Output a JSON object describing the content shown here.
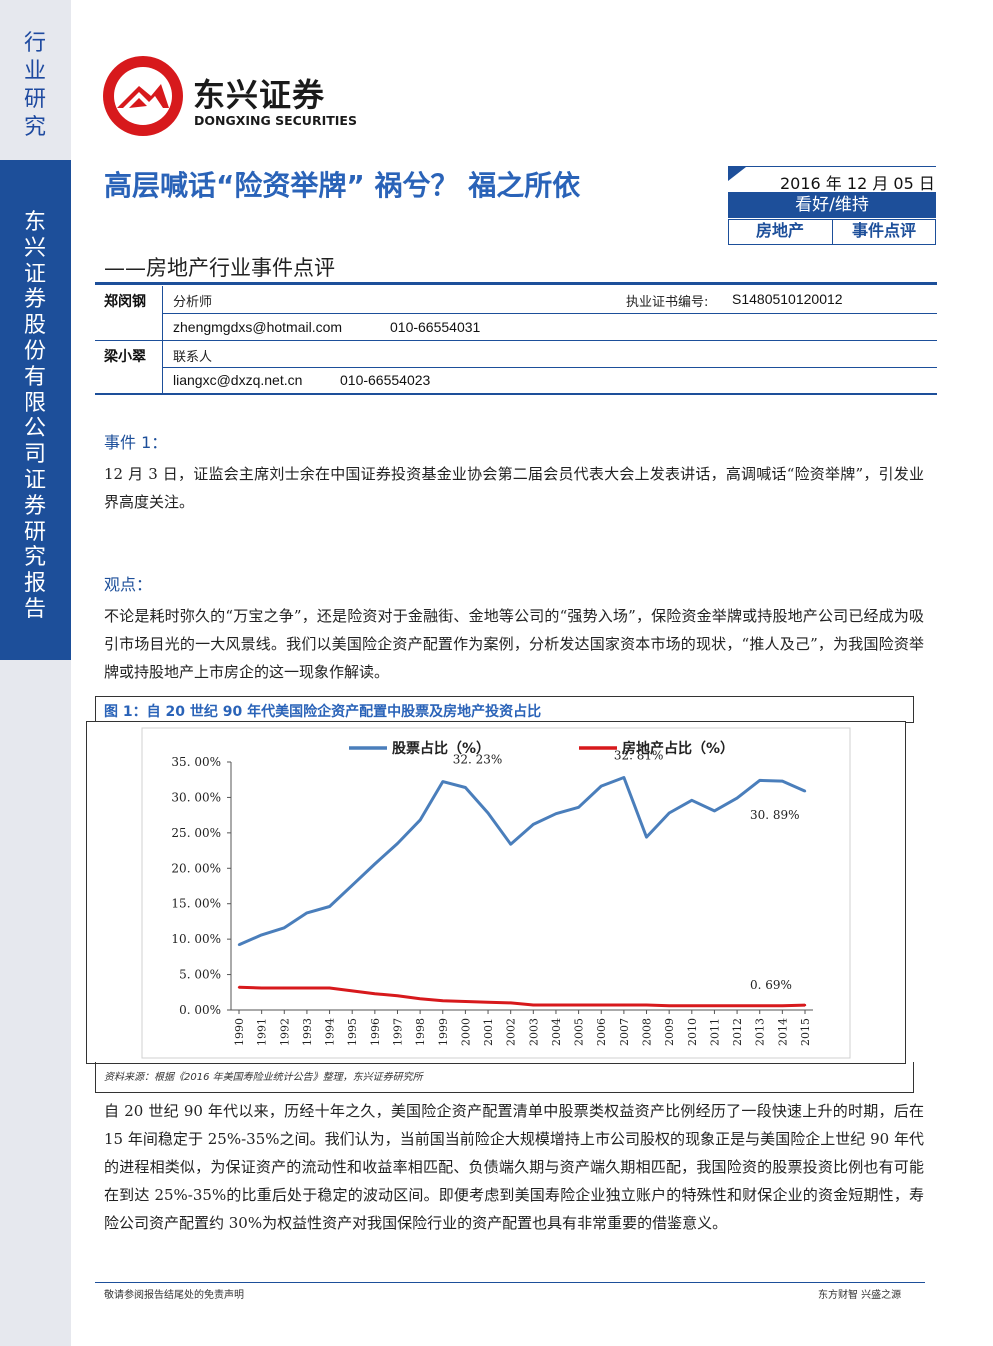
{
  "sidebar": {
    "top_label": "行业研究",
    "company_label": "东兴证券股份有限公司证券研究报告"
  },
  "logo": {
    "cn": "东兴证券",
    "en": "DONGXING SECURITIES",
    "color": "#d7191c"
  },
  "header": {
    "title": "高层喊话“险资举牌” 祸兮？ 福之所依",
    "subtitle": "——房地产行业事件点评",
    "date": "2016 年 12 月 05 日",
    "rating": "看好/维持",
    "tags": [
      "房地产",
      "事件点评"
    ]
  },
  "analysts": [
    {
      "name": "郑闵钢",
      "role": "分析师",
      "cert_label": "执业证书编号:",
      "cert_no": "S1480510120012",
      "email": "zhengmgdxs@hotmail.com",
      "phone": "010-66554031"
    },
    {
      "name": "梁小翠",
      "role": "联系人",
      "email": "liangxc@dxzq.net.cn",
      "phone": "010-66554023"
    }
  ],
  "event": {
    "heading": "事件 1：",
    "text": "12 月 3 日，证监会主席刘士余在中国证券投资基金业协会第二届会员代表大会上发表讲话，高调喊话“险资举牌”，引发业界高度关注。"
  },
  "view": {
    "heading": "观点：",
    "text": "不论是耗时弥久的“万宝之争”，还是险资对于金融街、金地等公司的“强势入场”，保险资金举牌或持股地产公司已经成为吸引市场目光的一大风景线。我们以美国险企资产配置作为案例，分析发达国家资本市场的现状，“推人及己”，为我国险资举牌或持股地产上市房企的这一现象作解读。"
  },
  "figure": {
    "heading": "图 1：自 20 世纪 90 年代美国险企资产配置中股票及房地产投资占比",
    "source": "资料来源：根据《2016 年美国寿险业统计公告》整理，东兴证券研究所"
  },
  "chart_data": {
    "type": "line",
    "x": [
      "1990",
      "1991",
      "1992",
      "1993",
      "1994",
      "1995",
      "1996",
      "1997",
      "1998",
      "1999",
      "2000",
      "2001",
      "2002",
      "2003",
      "2004",
      "2005",
      "2006",
      "2007",
      "2008",
      "2009",
      "2010",
      "2011",
      "2012",
      "2013",
      "2014",
      "2015"
    ],
    "series": [
      {
        "name": "股票占比（%）",
        "color": "#4a7ebb",
        "values": [
          9.2,
          10.6,
          11.6,
          13.7,
          14.6,
          17.6,
          20.6,
          23.5,
          26.8,
          32.23,
          31.4,
          27.8,
          23.4,
          26.2,
          27.7,
          28.6,
          31.6,
          32.81,
          24.4,
          27.8,
          29.6,
          28.1,
          29.9,
          32.4,
          32.3,
          30.89
        ]
      },
      {
        "name": "房地产占比（%）",
        "color": "#d7191c",
        "values": [
          3.2,
          3.1,
          3.1,
          3.1,
          3.1,
          2.7,
          2.3,
          2.0,
          1.6,
          1.3,
          1.2,
          1.1,
          1.0,
          0.7,
          0.7,
          0.7,
          0.7,
          0.7,
          0.7,
          0.6,
          0.6,
          0.6,
          0.6,
          0.6,
          0.6,
          0.69
        ]
      }
    ],
    "yticks": [
      "35. 00%",
      "30. 00%",
      "25. 00%",
      "20. 00%",
      "15. 00%",
      "10. 00%",
      "5. 00%",
      "0. 00%"
    ],
    "ylim": [
      0,
      35
    ],
    "annotations": [
      {
        "text": "32. 23%",
        "x": "1999",
        "value": 32.23
      },
      {
        "text": "32. 81%",
        "x": "2007",
        "value": 32.81
      },
      {
        "text": "30. 89%",
        "x": "2015",
        "value": 30.89
      },
      {
        "text": "0. 69%",
        "x": "2015",
        "value": 0.69
      }
    ],
    "legend_position": "top",
    "grid": false
  },
  "analysis": {
    "text": "自 20 世纪 90 年代以来，历经十年之久，美国险企资产配置清单中股票类权益资产比例经历了一段快速上升的时期，后在 15 年间稳定于 25%-35%之间。我们认为，当前国当前险企大规模增持上市公司股权的现象正是与美国险企上世纪 90 年代的进程相类似，为保证资产的流动性和收益率相匹配、负债端久期与资产端久期相匹配，我国险资的股票投资比例也有可能在到达 25%-35%的比重后处于稳定的波动区间。即便考虑到美国寿险企业独立账户的特殊性和财保企业的资金短期性，寿险公司资产配置约 30%为权益性资产对我国保险行业的资产配置也具有非常重要的借鉴意义。"
  },
  "footer": {
    "left": "敬请参阅报告结尾处的免责声明",
    "right": "东方财智  兴盛之源"
  }
}
